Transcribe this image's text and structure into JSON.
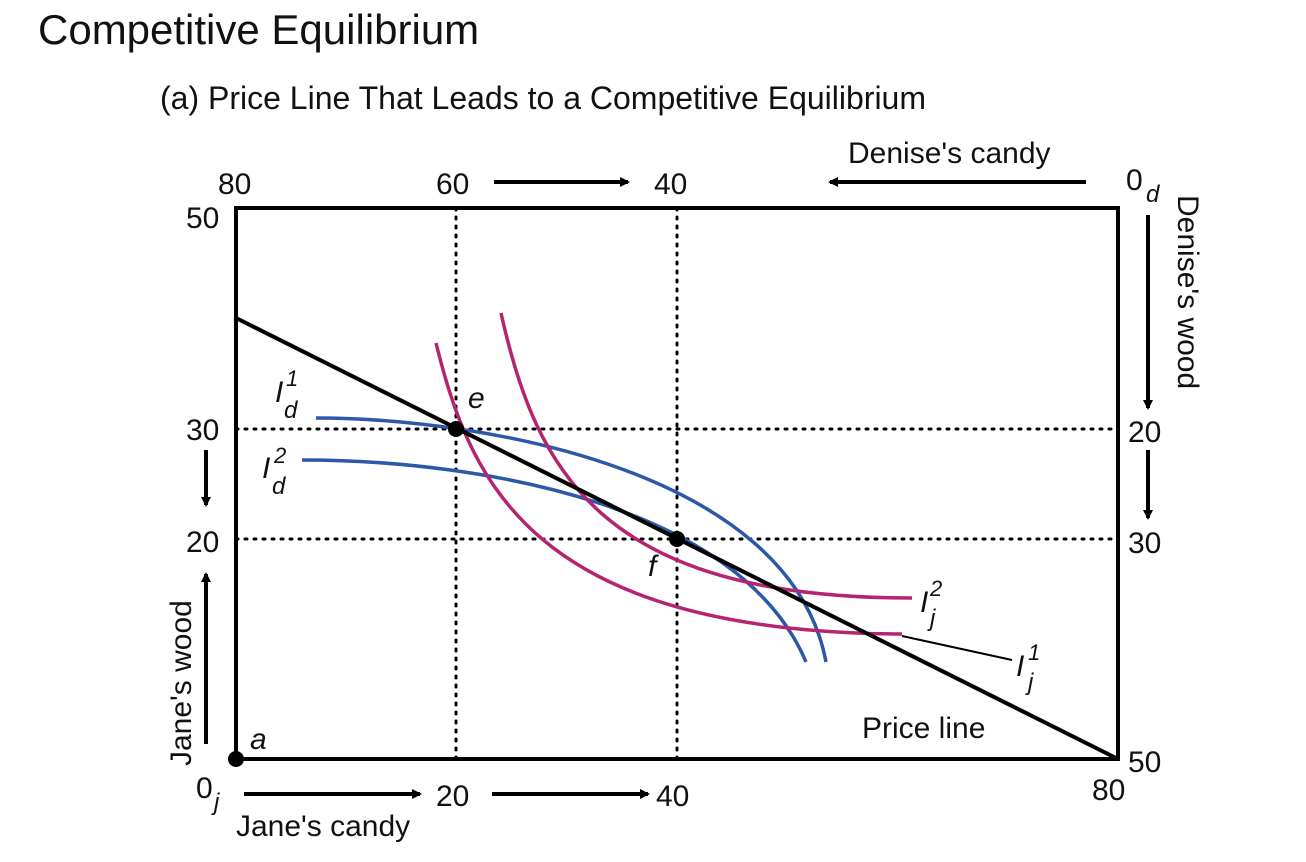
{
  "title": "Competitive Equilibrium",
  "panel_title": "(a) Price Line That Leads to a Competitive Equilibrium",
  "axes": {
    "jane_candy": {
      "label": "Jane's candy",
      "ticks": [
        "20",
        "40"
      ],
      "origin": "0",
      "origin_sub": "j",
      "end": "80"
    },
    "jane_wood": {
      "label": "Jane's wood",
      "ticks": [
        "50",
        "30",
        "20"
      ]
    },
    "denise_candy": {
      "label": "Denise's candy",
      "ticks": [
        "80",
        "60",
        "40"
      ],
      "origin": "0",
      "origin_sub": "d"
    },
    "denise_wood": {
      "label": "Denise's wood",
      "ticks": [
        "20",
        "30",
        "50"
      ]
    }
  },
  "points": {
    "a": "a",
    "e": "e",
    "f": "f"
  },
  "price_line_label": "Price line",
  "indifference": {
    "Id1": {
      "base": "I",
      "sub": "d",
      "sup": "1"
    },
    "Id2": {
      "base": "I",
      "sub": "d",
      "sup": "2"
    },
    "Ij1": {
      "base": "I",
      "sub": "j",
      "sup": "1"
    },
    "Ij2": {
      "base": "I",
      "sub": "j",
      "sup": "2"
    }
  },
  "colors": {
    "denise_curves": "#2b59a8",
    "jane_curves": "#b5246f",
    "frame": "#000000"
  },
  "chart_data": {
    "type": "diagram",
    "box": {
      "candy_total": 80,
      "wood_total": 50
    },
    "price_line": [
      [
        0,
        40
      ],
      [
        80,
        0
      ]
    ],
    "points": [
      {
        "name": "a",
        "jane_candy": 0,
        "jane_wood": 0
      },
      {
        "name": "e",
        "jane_candy": 20,
        "jane_wood": 30
      },
      {
        "name": "f",
        "jane_candy": 40,
        "jane_wood": 20
      }
    ]
  }
}
